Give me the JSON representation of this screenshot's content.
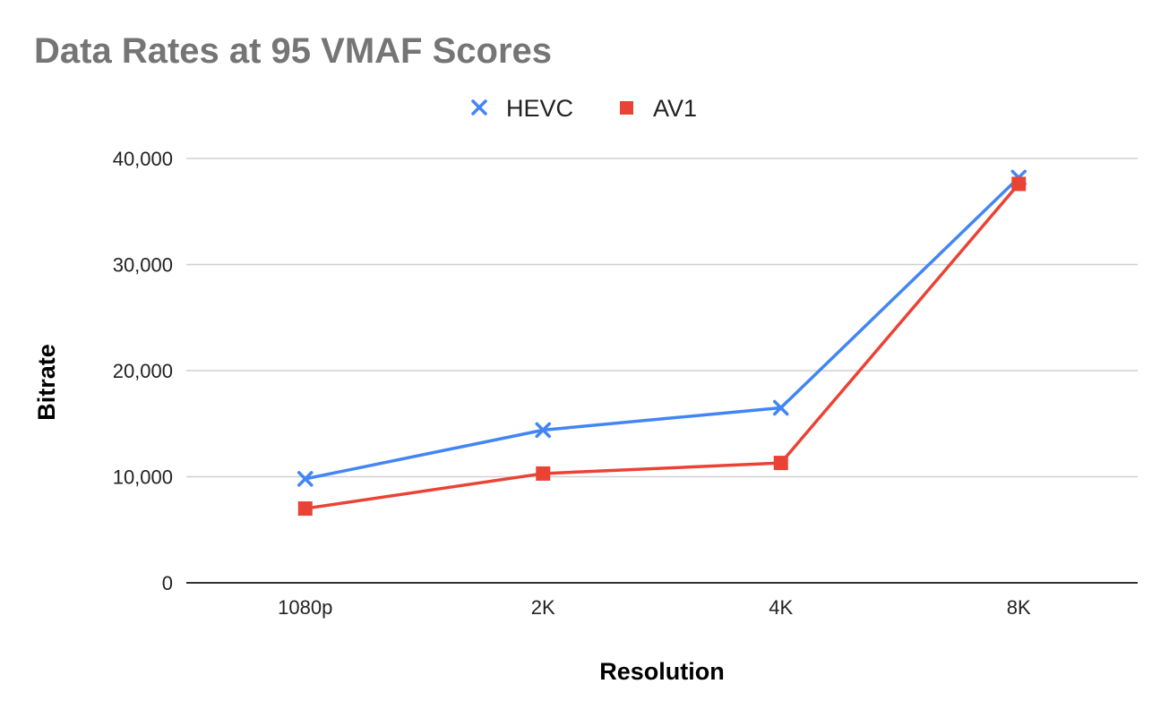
{
  "chart_data": {
    "type": "line",
    "title": "Data Rates at 95 VMAF Scores",
    "xlabel": "Resolution",
    "ylabel": "Bitrate",
    "categories": [
      "1080p",
      "2K",
      "4K",
      "8K"
    ],
    "ylim": [
      0,
      40000
    ],
    "yticks": [
      0,
      10000,
      20000,
      30000,
      40000
    ],
    "ytick_labels": [
      "0",
      "10,000",
      "20,000",
      "30,000",
      "40,000"
    ],
    "grid": true,
    "legend_position": "top",
    "series": [
      {
        "name": "HEVC",
        "marker": "x",
        "color": "#4285f4",
        "values": [
          9800,
          14400,
          16500,
          38200
        ]
      },
      {
        "name": "AV1",
        "marker": "square",
        "color": "#ea4335",
        "values": [
          7000,
          10300,
          11300,
          37600
        ]
      }
    ]
  }
}
